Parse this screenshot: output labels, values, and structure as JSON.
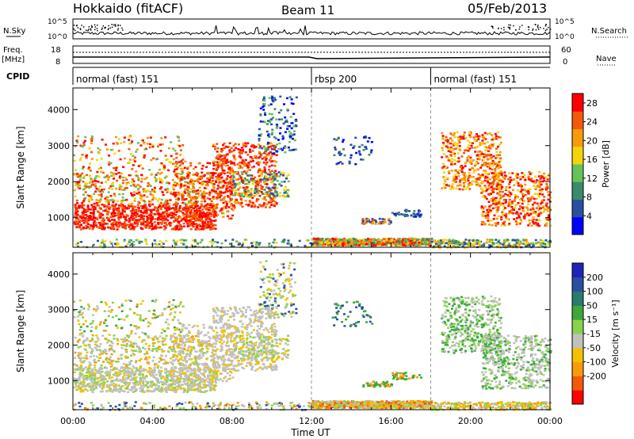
{
  "header": {
    "title": "Hokkaido (fitACF)",
    "beam": "Beam 11",
    "date": "05/Feb/2013"
  },
  "side_labels": {
    "nsky": "N.Sky",
    "freq_line1": "Freq.",
    "freq_line2": "[MHz]",
    "cpid": "CPID",
    "nsearch": "N.Search",
    "nave": "Nave"
  },
  "nsky_axis": {
    "top": "10^5",
    "bottom": "10^0",
    "right_top": "10^5",
    "right_bottom": "10^0"
  },
  "freq_axis": {
    "top": "18",
    "bottom": "8",
    "right_top": "60",
    "right_bottom": "0"
  },
  "cpid_segments": [
    {
      "label": "normal (fast) 151",
      "start_hour": 0,
      "end_hour": 12
    },
    {
      "label": "rbsp 200",
      "start_hour": 12,
      "end_hour": 18
    },
    {
      "label": "normal (fast) 151",
      "start_hour": 18,
      "end_hour": 24
    }
  ],
  "colors": {
    "power_scale": [
      "#0000ff",
      "#2a4fa0",
      "#3c8a6e",
      "#67c25a",
      "#f2d40a",
      "#f79a0b",
      "#f25a0a",
      "#ff0000"
    ],
    "velocity_scale": [
      "#ff0000",
      "#f25a0a",
      "#f79a0b",
      "#f2c200",
      "#c0c0c0",
      "#8ad24e",
      "#3aa83a",
      "#2a7a6e",
      "#2a4fa0",
      "#1e24b8"
    ]
  },
  "chart_data": [
    {
      "type": "heatmap",
      "title": "",
      "xlabel": "Time UT",
      "ylabel": "Slant Range [km]",
      "x_ticks": [
        "00:00",
        "04:00",
        "08:00",
        "12:00",
        "16:00",
        "20:00",
        "00:00"
      ],
      "xlim_hours": [
        0,
        24
      ],
      "y_ticks": [
        1000,
        2000,
        3000,
        4000
      ],
      "ylim": [
        180,
        4600
      ],
      "colorbar_label": "Power [dB]",
      "colorbar_ticks": [
        4,
        8,
        12,
        16,
        20,
        24,
        28
      ],
      "colorbar_range": [
        0,
        30
      ]
    },
    {
      "type": "heatmap",
      "title": "",
      "xlabel": "Time UT",
      "ylabel": "Slant Range [km]",
      "x_ticks": [
        "00:00",
        "04:00",
        "08:00",
        "12:00",
        "16:00",
        "20:00",
        "00:00"
      ],
      "xlim_hours": [
        0,
        24
      ],
      "y_ticks": [
        1000,
        2000,
        3000,
        4000
      ],
      "ylim": [
        180,
        4600
      ],
      "colorbar_label": "Velocity [m s⁻¹]",
      "colorbar_ticks": [
        200,
        100,
        50,
        15,
        -15,
        -50,
        -100,
        -200
      ]
    }
  ]
}
